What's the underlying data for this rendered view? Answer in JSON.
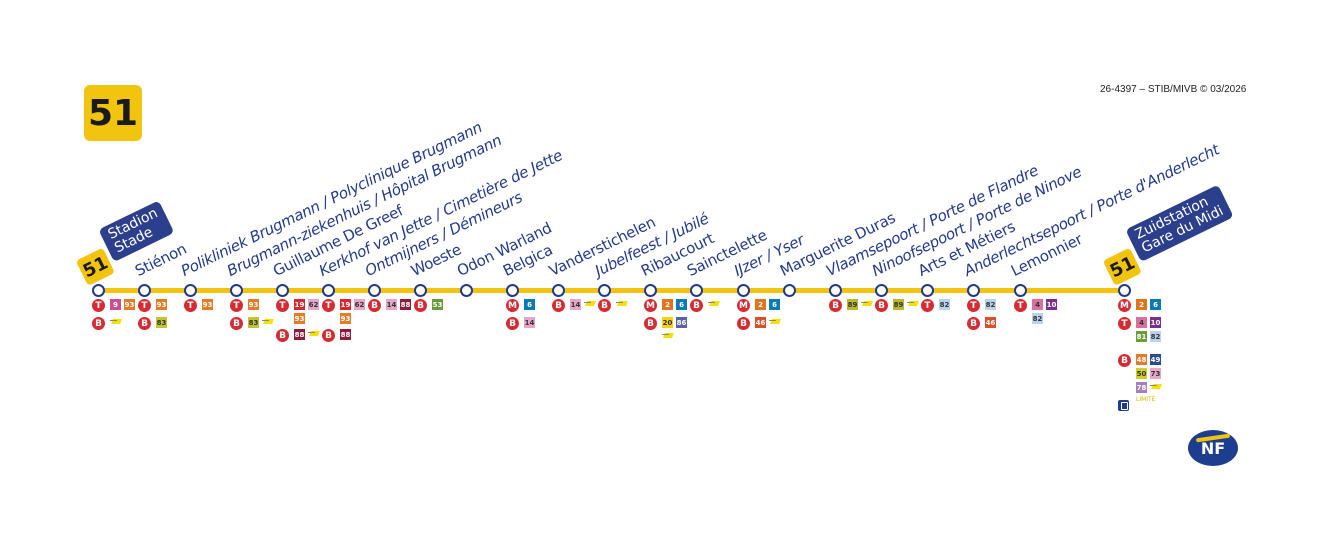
{
  "line": {
    "number": "51",
    "color": "#f2c40f"
  },
  "copyright": "26-4397 – STIB/MIVB © 03/2026",
  "origin": {
    "number": "51",
    "name": "Stadion\nStade"
  },
  "destination": {
    "number": "51",
    "name": "Zuidstation\nGare du Midi"
  },
  "limited_label": "LIMITÉ",
  "certification_logo": "NF SERVICE",
  "line_colors": {
    "2": "#e0731f",
    "4": "#d9709f",
    "6": "#0a7ab5",
    "9": "#c8508f",
    "10": "#7a2f8e",
    "14": "#e5a6c8",
    "19": "#d8282f",
    "20": "#f5d20b",
    "46": "#d9502a",
    "48": "#e07a2a",
    "49": "#2c4a8d",
    "50": "#d4cc2a",
    "53": "#6b9a3a",
    "62": "#e7a5c7",
    "73": "#e9a7c8",
    "78": "#a67fbd",
    "81": "#6e9c3a",
    "82": "#b9d3ee",
    "83": "#c4c331",
    "86": "#5a63a8",
    "88": "#8e1c3a",
    "89": "#b9b82e",
    "93": "#e37b27"
  },
  "stations": [
    {
      "name": "",
      "conn": [
        {
          "mode": "T",
          "lines": [
            "9",
            "93"
          ]
        },
        {
          "mode": "B",
          "lines": [],
          "noctis": true
        }
      ]
    },
    {
      "name": "Stiénon",
      "conn": [
        {
          "mode": "T",
          "lines": [
            "93"
          ]
        },
        {
          "mode": "B",
          "lines": [
            "83"
          ]
        }
      ]
    },
    {
      "name": "Polikliniek Brugmann / Polyclinique Brugmann",
      "italic": true,
      "conn": [
        {
          "mode": "T",
          "lines": [
            "93"
          ]
        }
      ]
    },
    {
      "name": "Brugmann-ziekenhuis / Hôpital Brugmann",
      "italic": true,
      "conn": [
        {
          "mode": "T",
          "lines": [
            "93"
          ]
        },
        {
          "mode": "B",
          "lines": [
            "83"
          ],
          "noctis": true
        }
      ]
    },
    {
      "name": "Guillaume De Greef",
      "conn": [
        {
          "mode": "T",
          "lines": [
            "19",
            "62",
            "93"
          ]
        },
        {
          "mode": "B",
          "lines": [
            "88"
          ],
          "noctis": true
        }
      ]
    },
    {
      "name": "Kerkhof van Jette / Cimetière de Jette",
      "italic": true,
      "conn": [
        {
          "mode": "T",
          "lines": [
            "19",
            "62",
            "93"
          ]
        },
        {
          "mode": "B",
          "lines": [
            "88"
          ]
        }
      ]
    },
    {
      "name": "Ontmijners / Démineurs",
      "italic": true,
      "conn": [
        {
          "mode": "B",
          "lines": [
            "14",
            "88"
          ]
        }
      ]
    },
    {
      "name": "Woeste",
      "conn": [
        {
          "mode": "B",
          "lines": [
            "53"
          ]
        }
      ]
    },
    {
      "name": "Odon Warland",
      "conn": []
    },
    {
      "name": "Belgica",
      "conn": [
        {
          "mode": "M",
          "lines": [
            "6"
          ]
        },
        {
          "mode": "B",
          "lines": [
            "14"
          ]
        }
      ]
    },
    {
      "name": "Vanderstichelen",
      "conn": [
        {
          "mode": "B",
          "lines": [
            "14"
          ],
          "noctis": true
        }
      ]
    },
    {
      "name": "Jubelfeest / Jubilé",
      "italic": true,
      "conn": [
        {
          "mode": "B",
          "lines": [],
          "noctis": true
        }
      ]
    },
    {
      "name": "Ribaucourt",
      "conn": [
        {
          "mode": "M",
          "lines": [
            "2",
            "6"
          ]
        },
        {
          "mode": "B",
          "lines": [
            "20",
            "86"
          ],
          "noctis": true
        }
      ]
    },
    {
      "name": "Sainctelette",
      "conn": [
        {
          "mode": "B",
          "lines": [],
          "noctis": true
        }
      ]
    },
    {
      "name": "IJzer / Yser",
      "italic": true,
      "conn": [
        {
          "mode": "M",
          "lines": [
            "2",
            "6"
          ]
        },
        {
          "mode": "B",
          "lines": [
            "46"
          ],
          "noctis": true
        }
      ]
    },
    {
      "name": "Marguerite Duras",
      "conn": []
    },
    {
      "name": "Vlaamsepoort / Porte de Flandre",
      "italic": true,
      "conn": [
        {
          "mode": "B",
          "lines": [
            "89"
          ],
          "noctis": true
        }
      ]
    },
    {
      "name": "Ninoofsepoort / Porte de Ninove",
      "italic": true,
      "conn": [
        {
          "mode": "B",
          "lines": [
            "89"
          ],
          "noctis": true
        }
      ]
    },
    {
      "name": "Arts et Métiers",
      "conn": [
        {
          "mode": "T",
          "lines": [
            "82"
          ]
        }
      ]
    },
    {
      "name": "Anderlechtsepoort / Porte d'Anderlecht",
      "italic": true,
      "conn": [
        {
          "mode": "T",
          "lines": [
            "82"
          ]
        },
        {
          "mode": "B",
          "lines": [
            "46"
          ]
        }
      ]
    },
    {
      "name": "Lemonnier",
      "conn": [
        {
          "mode": "T",
          "lines": [
            "4",
            "10",
            "82"
          ]
        }
      ]
    },
    {
      "name": "",
      "conn": [
        {
          "mode": "M",
          "lines": [
            "2",
            "6"
          ]
        },
        {
          "mode": "T",
          "lines": [
            "4",
            "10",
            "81",
            "82"
          ]
        },
        {
          "mode": "B",
          "lines": [
            "48",
            "49",
            "50",
            "73",
            "78"
          ],
          "noctis": true,
          "limited": true
        }
      ]
    }
  ]
}
